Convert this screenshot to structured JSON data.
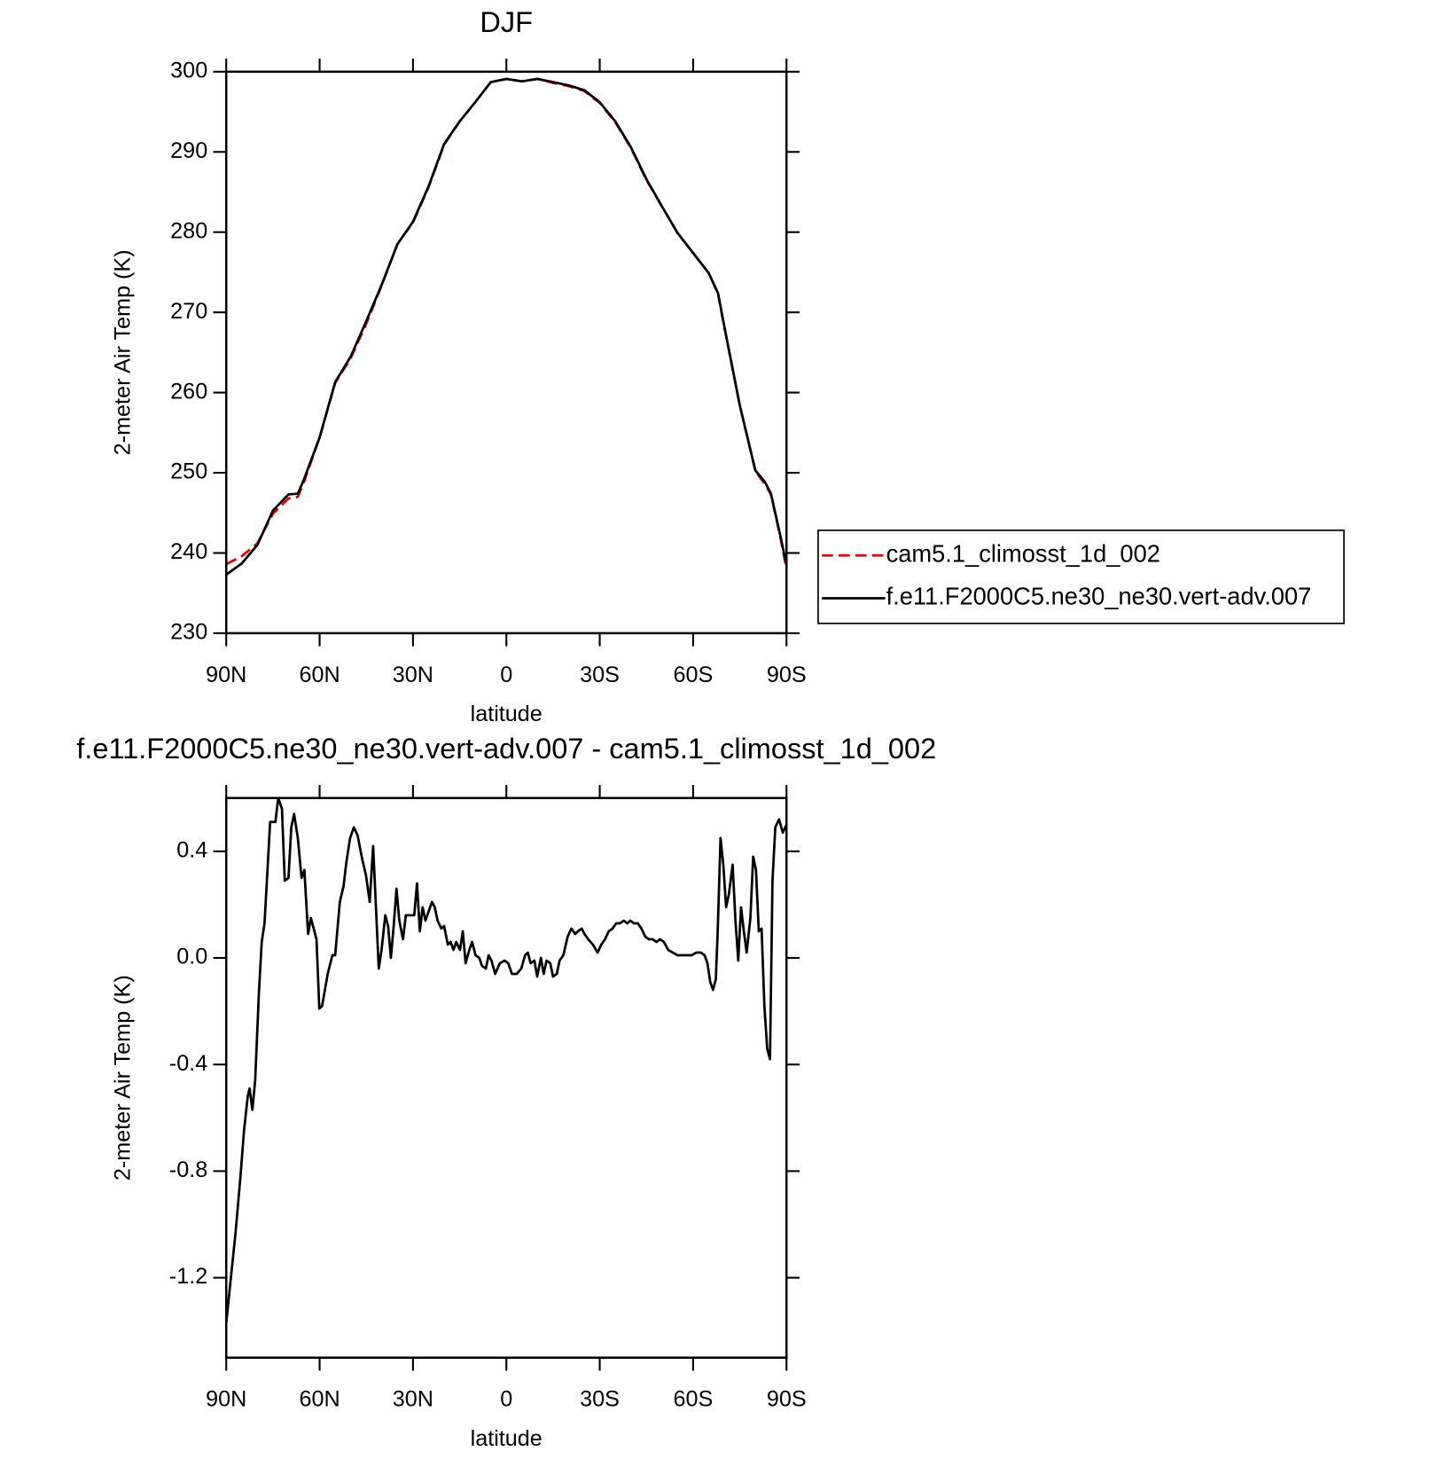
{
  "chart_data": [
    {
      "type": "line",
      "title": "DJF",
      "xlabel": "latitude",
      "ylabel": "2-meter Air Temp (K)",
      "xlim": [
        90,
        -90
      ],
      "ylim": [
        230,
        300
      ],
      "xticks": [
        {
          "value": 90,
          "label": "90N"
        },
        {
          "value": 60,
          "label": "60N"
        },
        {
          "value": 30,
          "label": "30N"
        },
        0,
        {
          "value": -30,
          "label": "30S"
        },
        {
          "value": -60,
          "label": "60S"
        },
        {
          "value": -90,
          "label": "90S"
        }
      ],
      "yticks": [
        230,
        240,
        250,
        260,
        270,
        280,
        290,
        300
      ],
      "legend": "right",
      "x": [
        90,
        85,
        80,
        75,
        70,
        67,
        65,
        60,
        55,
        50,
        45,
        40,
        35,
        30,
        25,
        20,
        15,
        10,
        5,
        0,
        -5,
        -10,
        -15,
        -20,
        -25,
        -30,
        -35,
        -40,
        -45,
        -50,
        -55,
        -60,
        -65,
        -68,
        -70,
        -75,
        -80,
        -83,
        -85,
        -88,
        -90
      ],
      "series": [
        {
          "name": "cam5.1_climosst_1d_002",
          "color": "#e00000",
          "dash": "dashed",
          "values": [
            238.6,
            239.6,
            241.2,
            244.9,
            246.8,
            247.0,
            248.9,
            254.4,
            261.2,
            264.3,
            268.6,
            273.4,
            278.5,
            281.2,
            285.6,
            290.9,
            293.8,
            296.2,
            298.7,
            299.1,
            298.8,
            299.1,
            298.6,
            298.2,
            297.6,
            296.1,
            293.7,
            290.5,
            286.5,
            283.2,
            279.9,
            277.4,
            274.9,
            272.3,
            268.2,
            258.4,
            250.2,
            248.6,
            247.3,
            242.0,
            238.0
          ]
        },
        {
          "name": "f.e11.F2000C5.ne30_ne30.vert-adv.007",
          "color": "#000000",
          "dash": "solid",
          "values": [
            237.3,
            238.7,
            241.0,
            245.3,
            247.3,
            247.4,
            249.2,
            254.4,
            261.3,
            264.5,
            268.9,
            273.5,
            278.5,
            281.3,
            285.7,
            291.0,
            293.8,
            296.2,
            298.7,
            299.1,
            298.8,
            299.1,
            298.7,
            298.3,
            297.7,
            296.2,
            293.8,
            290.6,
            286.6,
            283.2,
            279.9,
            277.4,
            274.9,
            272.4,
            268.3,
            258.4,
            250.3,
            248.9,
            247.4,
            242.2,
            238.5
          ]
        }
      ]
    },
    {
      "type": "line",
      "title": "f.e11.F2000C5.ne30_ne30.vert-adv.007 - cam5.1_climosst_1d_002",
      "xlabel": "latitude",
      "ylabel": "2-meter Air Temp (K)",
      "xlim": [
        90,
        -90
      ],
      "ylim": [
        -1.5,
        0.6
      ],
      "xticks": [
        {
          "value": 90,
          "label": "90N"
        },
        {
          "value": 60,
          "label": "60N"
        },
        {
          "value": 30,
          "label": "30N"
        },
        0,
        {
          "value": -30,
          "label": "30S"
        },
        {
          "value": -60,
          "label": "60S"
        },
        {
          "value": -90,
          "label": "90S"
        }
      ],
      "yticks": [
        {
          "value": -1.2,
          "label": "-1.2"
        },
        {
          "value": -0.8,
          "label": "-0.8"
        },
        {
          "value": -0.4,
          "label": "-0.4"
        },
        {
          "value": 0,
          "label": "0.0"
        },
        0.4
      ],
      "x": [
        90,
        87,
        85.5,
        84.3,
        83.1,
        82.5,
        81.6,
        80.7,
        79.5,
        78.6,
        77.7,
        75.9,
        74.2,
        73.3,
        72.1,
        71.2,
        70.0,
        69.1,
        68.2,
        67.0,
        65.8,
        64.9,
        63.7,
        62.8,
        61.0,
        60.1,
        59.2,
        57.4,
        55.9,
        55.0,
        53.5,
        52.3,
        51.4,
        50.2,
        49.0,
        47.8,
        46.3,
        45.1,
        43.9,
        42.8,
        41.0,
        40.1,
        38.9,
        38.0,
        37.1,
        36.2,
        35.3,
        34.4,
        33.2,
        32.3,
        30.8,
        29.6,
        28.7,
        27.8,
        26.9,
        26.0,
        25.1,
        23.9,
        23.0,
        22.1,
        20.9,
        20.0,
        18.8,
        17.9,
        17.0,
        16.1,
        14.9,
        14.0,
        13.1,
        11.9,
        11.0,
        9.9,
        8.7,
        7.8,
        6.6,
        5.7,
        4.8,
        3.6,
        2.1,
        0.6,
        -0.6,
        -1.8,
        -3.3,
        -4.8,
        -6.0,
        -6.9,
        -7.8,
        -9.0,
        -9.9,
        -11.1,
        -12.0,
        -12.9,
        -14.1,
        -15.0,
        -16.2,
        -17.1,
        -18.3,
        -19.7,
        -20.9,
        -22.1,
        -23.0,
        -24.2,
        -25.1,
        -26.3,
        -27.8,
        -29.3,
        -30.5,
        -31.7,
        -32.9,
        -34.1,
        -35.3,
        -36.5,
        -37.7,
        -38.9,
        -39.8,
        -41.0,
        -42.2,
        -43.4,
        -44.6,
        -45.8,
        -47.0,
        -48.2,
        -49.4,
        -50.6,
        -52.0,
        -53.5,
        -55.0,
        -56.5,
        -58.0,
        -59.5,
        -61.0,
        -62.5,
        -63.7,
        -64.6,
        -65.5,
        -66.4,
        -67.3,
        -67.9,
        -68.8,
        -69.7,
        -70.6,
        -71.5,
        -72.7,
        -73.6,
        -74.5,
        -75.4,
        -76.3,
        -77.2,
        -78.4,
        -79.3,
        -80.2,
        -81.1,
        -82.0,
        -82.9,
        -83.8,
        -84.7,
        -85.5,
        -86.4,
        -87.6,
        -88.8,
        -90.0
      ],
      "series": [
        {
          "color": "#000000",
          "dash": "solid",
          "values": [
            -1.37,
            -1.03,
            -0.83,
            -0.65,
            -0.52,
            -0.49,
            -0.57,
            -0.46,
            -0.13,
            0.06,
            0.13,
            0.51,
            0.51,
            0.6,
            0.56,
            0.29,
            0.3,
            0.49,
            0.54,
            0.45,
            0.3,
            0.33,
            0.09,
            0.15,
            0.07,
            -0.19,
            -0.18,
            -0.06,
            0.01,
            0.01,
            0.21,
            0.27,
            0.36,
            0.45,
            0.49,
            0.46,
            0.37,
            0.31,
            0.21,
            0.42,
            -0.04,
            0.03,
            0.16,
            0.12,
            0.0,
            0.12,
            0.26,
            0.14,
            0.07,
            0.16,
            0.16,
            0.16,
            0.28,
            0.1,
            0.19,
            0.14,
            0.17,
            0.21,
            0.19,
            0.14,
            0.11,
            0.12,
            0.05,
            0.06,
            0.03,
            0.06,
            0.03,
            0.1,
            -0.02,
            0.03,
            0.06,
            0.01,
            0.0,
            -0.03,
            -0.04,
            0.01,
            -0.01,
            -0.06,
            -0.02,
            -0.01,
            -0.02,
            -0.06,
            -0.06,
            -0.04,
            0.01,
            0.02,
            -0.02,
            -0.01,
            -0.07,
            0.0,
            -0.06,
            -0.01,
            -0.02,
            -0.07,
            -0.06,
            -0.01,
            0.01,
            0.08,
            0.11,
            0.09,
            0.1,
            0.11,
            0.09,
            0.07,
            0.05,
            0.02,
            0.05,
            0.07,
            0.1,
            0.11,
            0.13,
            0.13,
            0.14,
            0.13,
            0.14,
            0.13,
            0.13,
            0.11,
            0.08,
            0.07,
            0.07,
            0.06,
            0.07,
            0.06,
            0.03,
            0.02,
            0.01,
            0.01,
            0.01,
            0.01,
            0.02,
            0.02,
            0.01,
            -0.02,
            -0.09,
            -0.12,
            -0.08,
            0.1,
            0.45,
            0.35,
            0.19,
            0.24,
            0.35,
            0.14,
            -0.01,
            0.19,
            0.1,
            0.02,
            0.15,
            0.38,
            0.33,
            0.1,
            0.11,
            -0.18,
            -0.34,
            -0.38,
            0.29,
            0.49,
            0.52,
            0.47,
            0.5
          ]
        }
      ]
    }
  ]
}
